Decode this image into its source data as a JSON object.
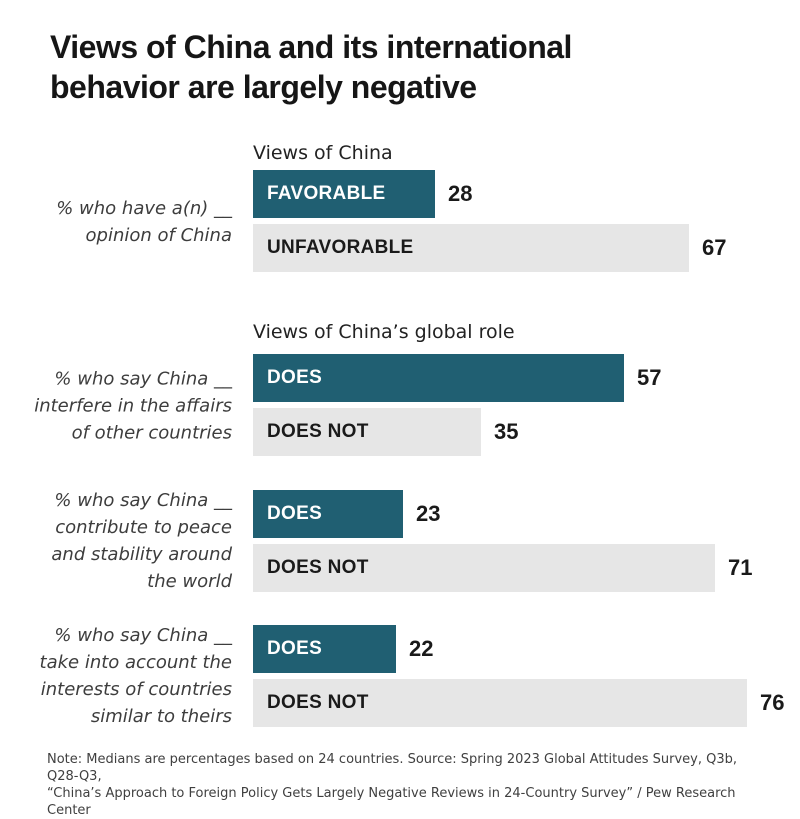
{
  "title_lines": [
    "Views of China and its international",
    "behavior are largely negative"
  ],
  "colors": {
    "teal": "#205f72",
    "gray": "#e6e6e6",
    "title_text": "#161616",
    "value_text": "#1a1a1a",
    "side_label_text": "#3d3d3d",
    "note_text": "#404040"
  },
  "chart_data": {
    "type": "bar",
    "orientation": "horizontal",
    "title": "Views of China and its international behavior are largely negative",
    "value_unit": "%",
    "xlim": [
      0,
      80
    ],
    "grid": "off",
    "legend": "none",
    "groups": [
      {
        "header": "Views of China",
        "side_label": "% who have a(n) __ opinion of China",
        "side_label_lines": [
          "% who have a(n) __",
          "opinion of China"
        ],
        "bars": [
          {
            "label": "FAVORABLE",
            "value": 28,
            "style": "teal"
          },
          {
            "label": "UNFAVORABLE",
            "value": 67,
            "style": "gray"
          }
        ]
      },
      {
        "header": "Views of China’s global role",
        "side_label": "% who say China __ interfere in the affairs of other countries",
        "side_label_lines": [
          "% who say China __",
          "interfere in the affairs",
          "of other countries"
        ],
        "bars": [
          {
            "label": "DOES",
            "value": 57,
            "style": "teal"
          },
          {
            "label": "DOES NOT",
            "value": 35,
            "style": "gray"
          }
        ]
      },
      {
        "header": "",
        "side_label": "% who say China __ contribute to peace and stability around the world",
        "side_label_lines": [
          "% who say China __",
          "contribute to peace",
          "and stability around",
          "the world"
        ],
        "bars": [
          {
            "label": "DOES",
            "value": 23,
            "style": "teal"
          },
          {
            "label": "DOES NOT",
            "value": 71,
            "style": "gray"
          }
        ]
      },
      {
        "header": "",
        "side_label": "% who say China __ take into account the interests of countries similar to theirs",
        "side_label_lines": [
          "% who say China __",
          "take into account the",
          "interests of countries",
          "similar to theirs"
        ],
        "bars": [
          {
            "label": "DOES",
            "value": 22,
            "style": "teal"
          },
          {
            "label": "DOES NOT",
            "value": 76,
            "style": "gray"
          }
        ]
      }
    ]
  },
  "note_lines": [
    "Note: Medians are percentages based on 24 countries. Source: Spring 2023 Global Attitudes Survey, Q3b, Q28-Q3,",
    "“China’s Approach to Foreign Policy Gets Largely Negative Reviews in 24-Country Survey” / Pew Research Center"
  ]
}
